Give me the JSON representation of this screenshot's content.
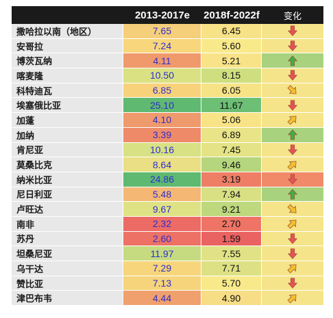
{
  "header": {
    "col_country": "",
    "col_period1": "2013-2017e",
    "col_period2": "2018f-2022f",
    "col_change": "变化"
  },
  "chart_data": {
    "type": "table",
    "columns": [
      "",
      "2013-2017e",
      "2018f-2022f",
      "变化"
    ],
    "rows": [
      {
        "country": "撒哈拉以南（地区）",
        "v1": "7.65",
        "v2": "6.45",
        "change": "down",
        "c1": "#f6cf7a",
        "c2": "#f7e287",
        "cc": "#f5e48a"
      },
      {
        "country": "安哥拉",
        "v1": "7.24",
        "v2": "5.60",
        "change": "down",
        "c1": "#f7d67c",
        "c2": "#f8ea8a",
        "cc": "#f5e48a"
      },
      {
        "country": "博茨瓦纳",
        "v1": "4.11",
        "v2": "5.21",
        "change": "up",
        "c1": "#f09a6c",
        "c2": "#f8e388",
        "cc": "#a8d27e"
      },
      {
        "country": "喀麦隆",
        "v1": "10.50",
        "v2": "8.15",
        "change": "down",
        "c1": "#d9e183",
        "c2": "#cfdf80",
        "cc": "#f5e48a"
      },
      {
        "country": "科特迪瓦",
        "v1": "6.85",
        "v2": "6.05",
        "change": "down-right",
        "c1": "#f7d27b",
        "c2": "#f5e386",
        "cc": "#f5e48a"
      },
      {
        "country": "埃塞俄比亚",
        "v1": "25.10",
        "v2": "11.67",
        "change": "down",
        "c1": "#5fb970",
        "c2": "#6cbf74",
        "cc": "#f5e48a"
      },
      {
        "country": "加蓬",
        "v1": "4.10",
        "v2": "5.06",
        "change": "up-right",
        "c1": "#ef9a6c",
        "c2": "#f8e487",
        "cc": "#f5e48a"
      },
      {
        "country": "加纳",
        "v1": "3.39",
        "v2": "6.89",
        "change": "up",
        "c1": "#ee8a68",
        "c2": "#e8e487",
        "cc": "#a8d27e"
      },
      {
        "country": "肯尼亚",
        "v1": "10.16",
        "v2": "7.45",
        "change": "down",
        "c1": "#d8e183",
        "c2": "#e4e385",
        "cc": "#f5e48a"
      },
      {
        "country": "莫桑比克",
        "v1": "8.64",
        "v2": "9.46",
        "change": "up-right",
        "c1": "#eadf84",
        "c2": "#b5d67c",
        "cc": "#f5e48a"
      },
      {
        "country": "纳米比亚",
        "v1": "24.86",
        "v2": "3.19",
        "change": "down",
        "c1": "#5fb970",
        "c2": "#ee7e66",
        "cc": "#f08a68"
      },
      {
        "country": "尼日利亚",
        "v1": "5.48",
        "v2": "7.94",
        "change": "up",
        "c1": "#f4b874",
        "c2": "#d8e083",
        "cc": "#a8d27e"
      },
      {
        "country": "卢旺达",
        "v1": "9.67",
        "v2": "9.21",
        "change": "down-right",
        "c1": "#dfe284",
        "c2": "#bdd87d",
        "cc": "#f5e48a"
      },
      {
        "country": "南非",
        "v1": "2.32",
        "v2": "2.70",
        "change": "up-right",
        "c1": "#ec6b64",
        "c2": "#ee7466",
        "cc": "#f5e48a"
      },
      {
        "country": "苏丹",
        "v1": "2.60",
        "v2": "1.59",
        "change": "down",
        "c1": "#ed7165",
        "c2": "#ea6262",
        "cc": "#f5e48a"
      },
      {
        "country": "坦桑尼亚",
        "v1": "11.97",
        "v2": "7.55",
        "change": "down",
        "c1": "#c6db80",
        "c2": "#e1e285",
        "cc": "#f5e48a"
      },
      {
        "country": "乌干达",
        "v1": "7.29",
        "v2": "7.71",
        "change": "up-right",
        "c1": "#f6d57b",
        "c2": "#dde184",
        "cc": "#f5e48a"
      },
      {
        "country": "赞比亚",
        "v1": "7.13",
        "v2": "5.70",
        "change": "down",
        "c1": "#f6d47b",
        "c2": "#f8e98a",
        "cc": "#f5e48a"
      },
      {
        "country": "津巴布韦",
        "v1": "4.44",
        "v2": "4.90",
        "change": "up-right",
        "c1": "#f0a06d",
        "c2": "#f7dd85",
        "cc": "#f5e48a"
      }
    ]
  },
  "icons": {
    "down": "red-down-arrow-icon",
    "up": "green-up-arrow-icon",
    "down-right": "yellow-down-right-arrow-icon",
    "up-right": "yellow-up-right-arrow-icon"
  },
  "colors": {
    "arrow_red": "#e8525a",
    "arrow_green": "#3fae49",
    "arrow_yellow": "#f2c12e",
    "header_bg": "#1a1a1a"
  }
}
